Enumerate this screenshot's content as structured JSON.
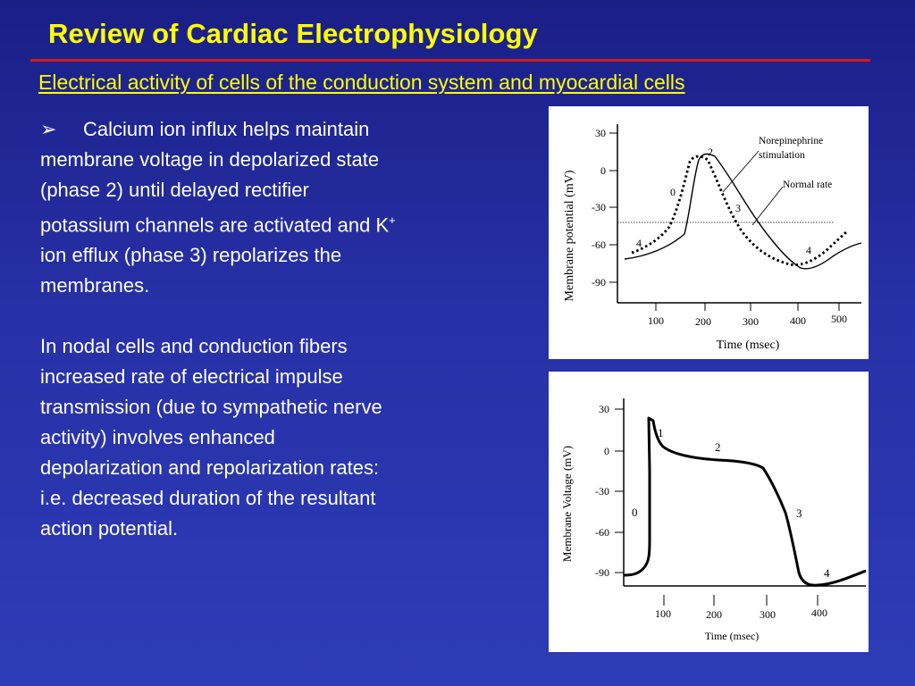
{
  "slide": {
    "title": "Review of Cardiac Electrophysiology",
    "subtitle": "Electrical activity of cells of the conduction system and myocardial cells",
    "bullet_glyph": "➢",
    "bullet_text_1": "Calcium ion influx helps maintain membrane voltage in depolarized state (phase 2) until delayed rectifier potassium channels are activated and K",
    "bullet_sup": "+",
    "bullet_text_2": " ion efflux (phase 3) repolarizes the membranes.",
    "paragraph_2": "In nodal cells and conduction fibers increased rate of electrical impulse transmission (due to sympathetic nerve activity) involves enhanced depolarization and repolarization rates: i.e. decreased duration of the resultant action potential.",
    "colors": {
      "title": "#ffff00",
      "rule": "#d11a1a",
      "body": "#ffffff",
      "background": "#2730a6"
    }
  },
  "figure_top": {
    "ylabel": "Membrane potential (mV)",
    "xlabel": "Time (msec)",
    "y_ticks": [
      "30",
      "0",
      "-30",
      "-60",
      "-90"
    ],
    "x_ticks": [
      "100",
      "200",
      "300",
      "400",
      "500"
    ],
    "legend_ne_1": "Norepinephrine",
    "legend_ne_2": "stimulation",
    "legend_normal": "Normal rate",
    "phase_labels": [
      "2",
      "0",
      "3",
      "4",
      "4"
    ]
  },
  "figure_bottom": {
    "ylabel": "Membrane Voltage (mV)",
    "xlabel": "Time (msec)",
    "y_ticks": [
      "30",
      "0",
      "-30",
      "-60",
      "-90"
    ],
    "x_ticks": [
      "100",
      "200",
      "300",
      "400"
    ],
    "phase_labels": [
      "1",
      "2",
      "0",
      "3",
      "4"
    ]
  }
}
